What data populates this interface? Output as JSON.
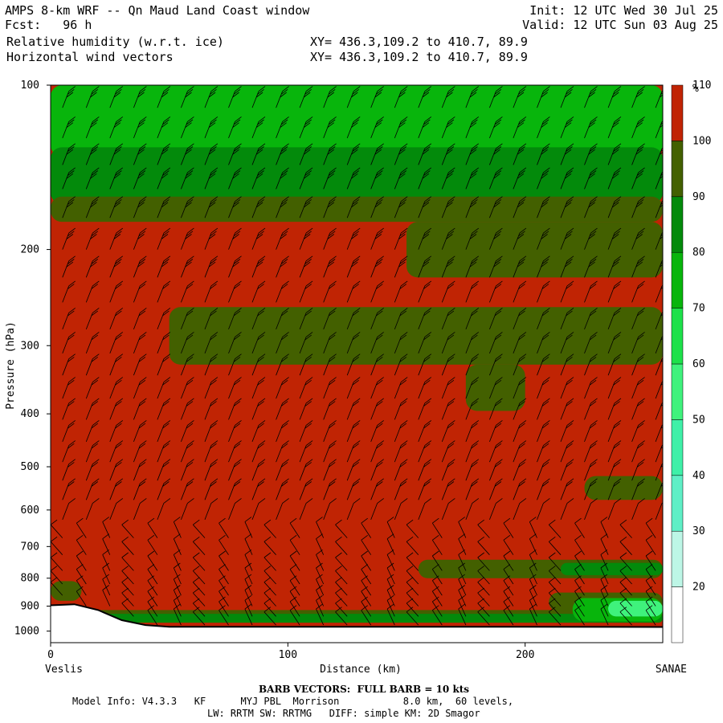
{
  "header": {
    "title": "AMPS 8-km WRF -- Qn Maud Land Coast window",
    "init": "Init: 12 UTC Wed 30 Jul 25",
    "fcst": "Fcst:   96 h",
    "valid": "Valid: 12 UTC Sun 03 Aug 25",
    "field1": "Relative humidity (w.r.t. ice)",
    "xy1": "XY= 436.3,109.2 to 410.7, 89.9",
    "field2": "Horizontal wind vectors",
    "xy2": "XY= 436.3,109.2 to 410.7, 89.9"
  },
  "chart_data": {
    "type": "heatmap",
    "xlabel": "Distance (km)",
    "ylabel": "Pressure (hPa)",
    "xlim": [
      0,
      258
    ],
    "ylim": [
      1050,
      100
    ],
    "y_scale": "log",
    "x_ticks": [
      0,
      100,
      200
    ],
    "y_ticks": [
      100,
      200,
      300,
      400,
      500,
      600,
      700,
      800,
      900,
      1000
    ],
    "left_label": "Veslis",
    "right_label": "SANAE",
    "colorbar": {
      "unit": "%",
      "levels": [
        20,
        30,
        40,
        50,
        60,
        70,
        80,
        90,
        100,
        110
      ],
      "colors": [
        "#ffffff",
        "#bdf6e6",
        "#5fefc6",
        "#3ff0a8",
        "#3ff27c",
        "#1de14a",
        "#08b50c",
        "#038a0b",
        "#436000",
        "#c02404"
      ]
    },
    "background_rh_pct": 105,
    "terrain_hpa": [
      {
        "x": 0,
        "p": 897
      },
      {
        "x": 10,
        "p": 893
      },
      {
        "x": 20,
        "p": 915
      },
      {
        "x": 30,
        "p": 955
      },
      {
        "x": 40,
        "p": 975
      },
      {
        "x": 50,
        "p": 982
      },
      {
        "x": 100,
        "p": 982
      },
      {
        "x": 150,
        "p": 982
      },
      {
        "x": 200,
        "p": 982
      },
      {
        "x": 258,
        "p": 983
      }
    ],
    "rh_regions": [
      {
        "rh_pct": 75,
        "x": [
          0,
          258
        ],
        "p": [
          100,
          135
        ]
      },
      {
        "rh_pct": 85,
        "x": [
          0,
          258
        ],
        "p": [
          130,
          165
        ]
      },
      {
        "rh_pct": 95,
        "x": [
          0,
          258
        ],
        "p": [
          160,
          178
        ]
      },
      {
        "rh_pct": 95,
        "x": [
          150,
          258
        ],
        "p": [
          178,
          225
        ]
      },
      {
        "rh_pct": 95,
        "x": [
          50,
          258
        ],
        "p": [
          255,
          325
        ]
      },
      {
        "rh_pct": 95,
        "x": [
          175,
          200
        ],
        "p": [
          325,
          395
        ]
      },
      {
        "rh_pct": 95,
        "x": [
          225,
          258
        ],
        "p": [
          520,
          575
        ]
      },
      {
        "rh_pct": 95,
        "x": [
          155,
          258
        ],
        "p": [
          740,
          800
        ]
      },
      {
        "rh_pct": 85,
        "x": [
          215,
          258
        ],
        "p": [
          750,
          790
        ]
      },
      {
        "rh_pct": 112,
        "x": [
          170,
          253
        ],
        "p": [
          822,
          830
        ]
      },
      {
        "rh_pct": 95,
        "x": [
          0,
          258
        ],
        "p": [
          915,
          960
        ]
      },
      {
        "rh_pct": 85,
        "x": [
          0,
          258
        ],
        "p": [
          930,
          965
        ]
      },
      {
        "rh_pct": 95,
        "x": [
          0,
          13
        ],
        "p": [
          810,
          880
        ]
      },
      {
        "rh_pct": 95,
        "x": [
          210,
          258
        ],
        "p": [
          850,
          920
        ]
      },
      {
        "rh_pct": 75,
        "x": [
          220,
          258
        ],
        "p": [
          870,
          960
        ]
      },
      {
        "rh_pct": 55,
        "x": [
          235,
          258
        ],
        "p": [
          880,
          940
        ]
      }
    ],
    "wind_barbs": {
      "x_columns_km": [
        5,
        15,
        25,
        35,
        45,
        55,
        65,
        75,
        85,
        95,
        105,
        115,
        125,
        135,
        145,
        155,
        165,
        175,
        185,
        195,
        205,
        215,
        225,
        235,
        245,
        255
      ],
      "p_levels_hpa": [
        110,
        125,
        140,
        155,
        175,
        200,
        225,
        250,
        280,
        310,
        340,
        375,
        410,
        450,
        490,
        530,
        575,
        625,
        675,
        725,
        775,
        820,
        860,
        900,
        940,
        975
      ],
      "full_barb_kts": 10
    }
  },
  "footer": {
    "barb": "BARB VECTORS:  FULL BARB = 10 kts",
    "line1": "Model Info: V4.3.3   KF      MYJ PBL  Morrison           8.0 km,  60 levels,",
    "line2": "LW: RRTM SW: RRTMG   DIFF: simple KM: 2D Smagor"
  }
}
